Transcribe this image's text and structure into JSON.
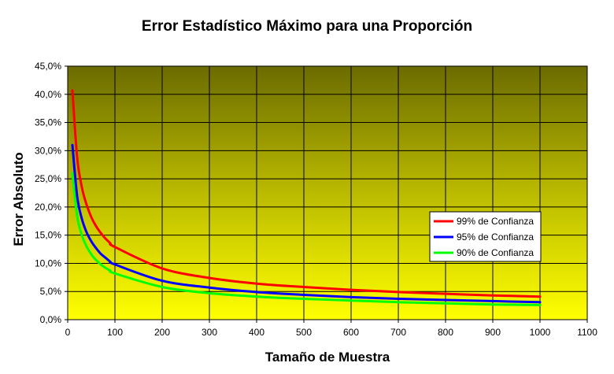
{
  "chart_data": {
    "type": "line",
    "title": "Error Estadístico Máximo para una Proporción",
    "xlabel": "Tamaño de Muestra",
    "ylabel": "Error Absoluto",
    "xlim": [
      0,
      1100
    ],
    "ylim": [
      0,
      45
    ],
    "x_ticks": [
      "0",
      "100",
      "200",
      "300",
      "400",
      "500",
      "600",
      "700",
      "800",
      "900",
      "1000",
      "1100"
    ],
    "y_ticks": [
      "0,0%",
      "5,0%",
      "10,0%",
      "15,0%",
      "20,0%",
      "25,0%",
      "30,0%",
      "35,0%",
      "40,0%",
      "45,0%"
    ],
    "grid": true,
    "legend_position": "right",
    "background": "gradient olive-to-yellow",
    "x": [
      10,
      20,
      30,
      40,
      50,
      60,
      70,
      80,
      90,
      100,
      200,
      300,
      400,
      500,
      600,
      700,
      800,
      900,
      1000
    ],
    "series": [
      {
        "name": "99% de Confianza",
        "color": "#ff0000",
        "values": [
          40.7,
          28.8,
          23.5,
          20.4,
          18.2,
          16.6,
          15.4,
          14.4,
          13.6,
          12.9,
          9.1,
          7.4,
          6.4,
          5.8,
          5.3,
          4.9,
          4.6,
          4.3,
          4.1
        ]
      },
      {
        "name": "95% de Confianza",
        "color": "#0000ff",
        "values": [
          31.0,
          21.9,
          17.9,
          15.5,
          13.9,
          12.7,
          11.7,
          11.0,
          10.3,
          9.8,
          6.9,
          5.7,
          4.9,
          4.4,
          4.0,
          3.7,
          3.5,
          3.3,
          3.1
        ]
      },
      {
        "name": "90% de Confianza",
        "color": "#00ff00",
        "values": [
          26.0,
          18.4,
          15.0,
          13.0,
          11.6,
          10.6,
          9.8,
          9.2,
          8.7,
          8.2,
          5.8,
          4.7,
          4.1,
          3.7,
          3.4,
          3.1,
          2.9,
          2.7,
          2.6
        ]
      }
    ]
  }
}
